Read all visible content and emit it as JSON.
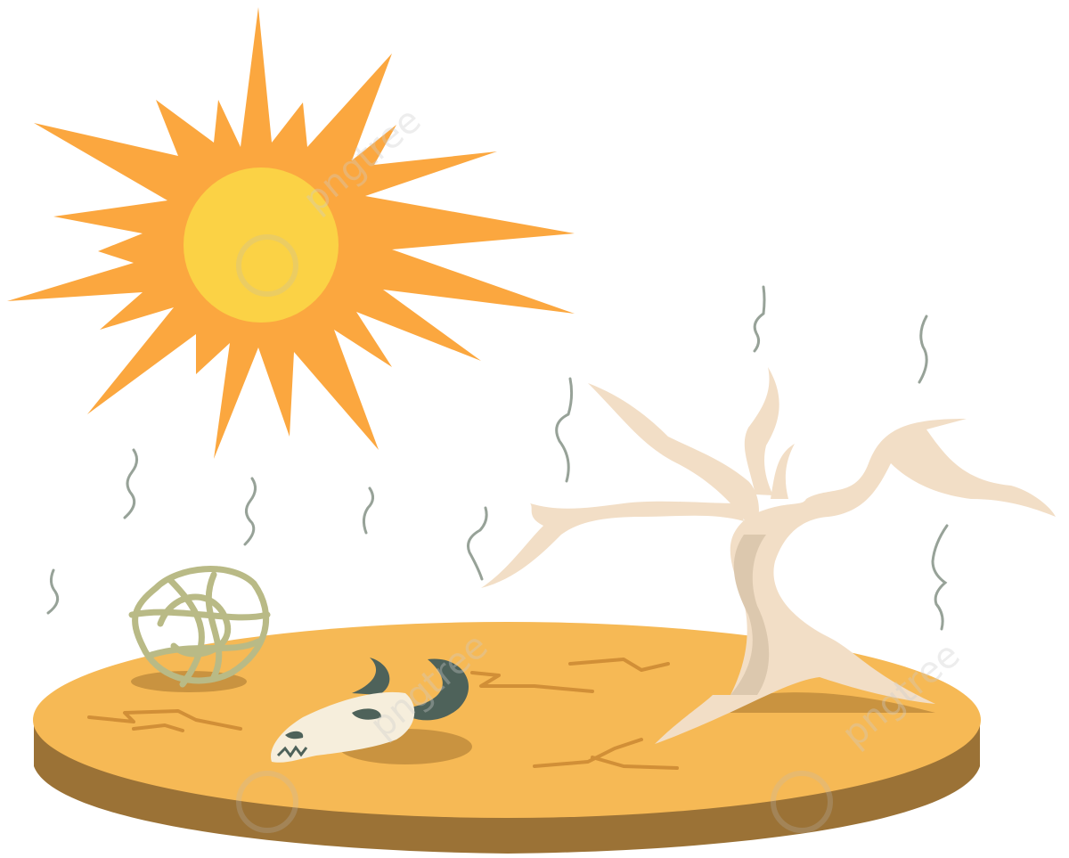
{
  "scene": {
    "subject": "drought",
    "elements": [
      "sun",
      "heat-waves",
      "dry-ground-disc",
      "ground-cracks",
      "tumbleweed",
      "cattle-skull",
      "dead-tree"
    ]
  },
  "colors": {
    "sun_rays": "#FBA73F",
    "sun_core": "#FBD245",
    "ground_top": "#F6B955",
    "ground_side": "#9B7236",
    "crack": "#D18F37",
    "shadow": "#C99340",
    "tree": "#F2DEC6",
    "tree_shade": "#DCC8AE",
    "skull_bone": "#F6EEDC",
    "skull_horn": "#4E625A",
    "tumbleweed": "#B9BA86",
    "heat_wave": "#97A298",
    "watermark": "#BBBBBB"
  },
  "watermark": {
    "text": "pngtree"
  }
}
